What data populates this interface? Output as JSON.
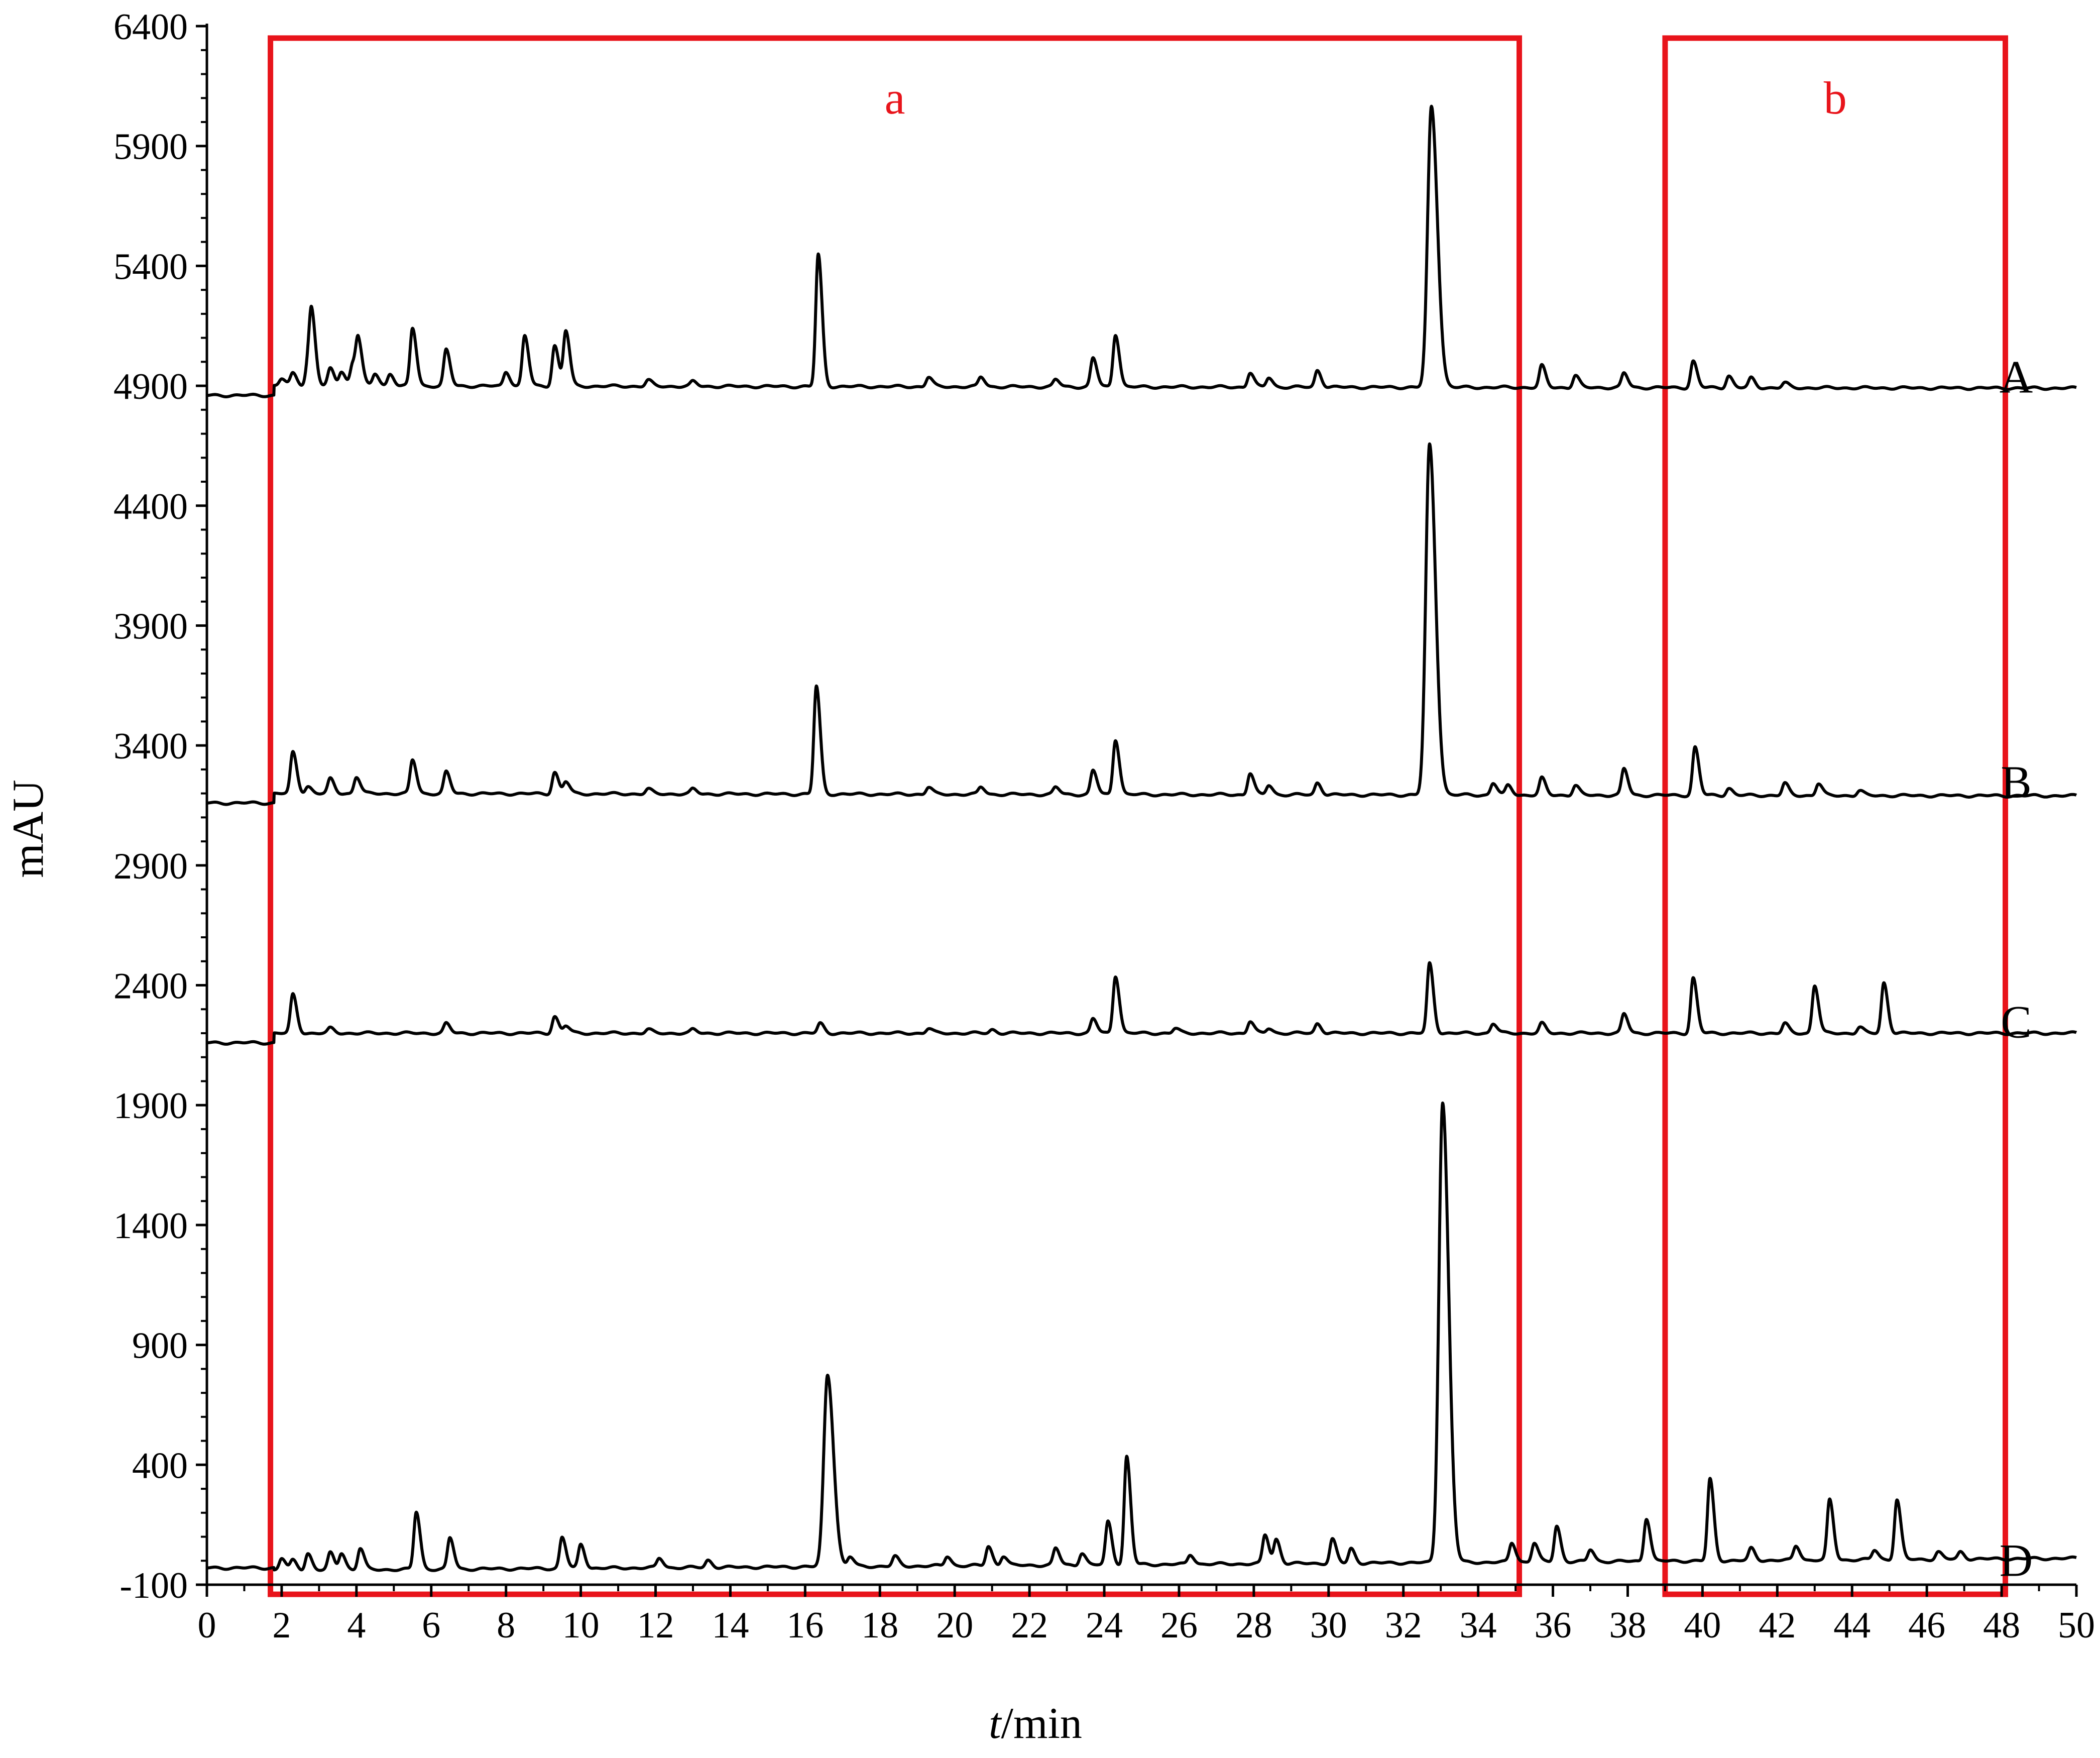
{
  "chart_data": {
    "type": "line",
    "title": "",
    "xlabel_italic": "t",
    "xlabel_rest": "/min",
    "ylabel": "mAU",
    "xlim": [
      0,
      50
    ],
    "ylim": [
      -100,
      6400
    ],
    "x_ticks": [
      0,
      2,
      4,
      6,
      8,
      10,
      12,
      14,
      16,
      18,
      20,
      22,
      24,
      26,
      28,
      30,
      32,
      34,
      36,
      38,
      40,
      42,
      44,
      46,
      48,
      50
    ],
    "y_ticks": [
      -100,
      400,
      900,
      1400,
      1900,
      2400,
      2900,
      3400,
      3900,
      4400,
      4900,
      5400,
      5900,
      6400
    ],
    "grid": false,
    "regions": [
      {
        "label": "a",
        "x_range": [
          1.7,
          35.1
        ],
        "y_range": [
          -140,
          6350
        ],
        "color": "#e8141b"
      },
      {
        "label": "b",
        "x_range": [
          39.0,
          48.1
        ],
        "y_range": [
          -140,
          6350
        ],
        "color": "#e8141b"
      }
    ],
    "series": [
      {
        "name": "A",
        "baseline": 4900,
        "end_value": 4890,
        "peaks": [
          [
            2.0,
            30
          ],
          [
            2.3,
            50
          ],
          [
            2.7,
            80
          ],
          [
            2.8,
            280
          ],
          [
            3.3,
            70
          ],
          [
            3.6,
            60
          ],
          [
            3.9,
            90
          ],
          [
            4.05,
            180
          ],
          [
            4.5,
            50
          ],
          [
            4.9,
            50
          ],
          [
            5.5,
            240
          ],
          [
            6.4,
            150
          ],
          [
            8.0,
            60
          ],
          [
            8.5,
            210
          ],
          [
            9.3,
            170
          ],
          [
            9.6,
            230
          ],
          [
            11.8,
            25
          ],
          [
            13.0,
            20
          ],
          [
            16.35,
            550
          ],
          [
            19.3,
            40
          ],
          [
            20.7,
            40
          ],
          [
            22.7,
            30
          ],
          [
            23.7,
            120
          ],
          [
            24.3,
            220
          ],
          [
            27.9,
            60
          ],
          [
            28.4,
            40
          ],
          [
            29.7,
            70
          ],
          [
            32.75,
            1170
          ],
          [
            35.7,
            90
          ],
          [
            36.6,
            50
          ],
          [
            37.9,
            60
          ],
          [
            39.75,
            110
          ],
          [
            40.7,
            50
          ],
          [
            41.3,
            40
          ],
          [
            42.2,
            20
          ]
        ]
      },
      {
        "name": "B",
        "baseline": 3200,
        "end_value": 3190,
        "peaks": [
          [
            2.3,
            170
          ],
          [
            2.7,
            30
          ],
          [
            3.3,
            60
          ],
          [
            4.0,
            70
          ],
          [
            5.5,
            140
          ],
          [
            6.4,
            90
          ],
          [
            9.3,
            90
          ],
          [
            9.6,
            50
          ],
          [
            11.8,
            20
          ],
          [
            13.0,
            20
          ],
          [
            16.3,
            450
          ],
          [
            19.3,
            30
          ],
          [
            20.7,
            30
          ],
          [
            22.7,
            30
          ],
          [
            23.7,
            100
          ],
          [
            24.3,
            230
          ],
          [
            27.9,
            90
          ],
          [
            28.4,
            40
          ],
          [
            29.7,
            50
          ],
          [
            32.7,
            1460
          ],
          [
            34.4,
            50
          ],
          [
            34.8,
            40
          ],
          [
            35.7,
            70
          ],
          [
            36.6,
            40
          ],
          [
            37.9,
            110
          ],
          [
            39.8,
            200
          ],
          [
            40.7,
            30
          ],
          [
            42.2,
            50
          ],
          [
            43.1,
            50
          ],
          [
            44.2,
            20
          ]
        ]
      },
      {
        "name": "C",
        "baseline": 2200,
        "end_value": 2200,
        "peaks": [
          [
            2.3,
            160
          ],
          [
            3.3,
            20
          ],
          [
            6.4,
            40
          ],
          [
            9.3,
            70
          ],
          [
            9.6,
            30
          ],
          [
            11.8,
            15
          ],
          [
            13.0,
            15
          ],
          [
            16.4,
            40
          ],
          [
            19.3,
            20
          ],
          [
            21.0,
            15
          ],
          [
            23.7,
            60
          ],
          [
            24.3,
            240
          ],
          [
            25.9,
            20
          ],
          [
            27.9,
            50
          ],
          [
            28.4,
            20
          ],
          [
            29.7,
            40
          ],
          [
            32.7,
            290
          ],
          [
            34.4,
            40
          ],
          [
            35.7,
            40
          ],
          [
            37.9,
            80
          ],
          [
            39.75,
            230
          ],
          [
            42.2,
            40
          ],
          [
            43.0,
            200
          ],
          [
            44.2,
            25
          ],
          [
            44.85,
            210
          ]
        ]
      },
      {
        "name": "D",
        "baseline": -40,
        "end_value": 10,
        "peaks": [
          [
            2.0,
            50
          ],
          [
            2.3,
            40
          ],
          [
            2.7,
            70
          ],
          [
            3.3,
            70
          ],
          [
            3.6,
            70
          ],
          [
            4.1,
            90
          ],
          [
            5.6,
            240
          ],
          [
            6.5,
            130
          ],
          [
            9.5,
            130
          ],
          [
            10.0,
            100
          ],
          [
            12.1,
            40
          ],
          [
            13.4,
            30
          ],
          [
            16.6,
            800
          ],
          [
            17.2,
            40
          ],
          [
            18.4,
            40
          ],
          [
            19.8,
            40
          ],
          [
            20.9,
            80
          ],
          [
            21.3,
            40
          ],
          [
            22.7,
            70
          ],
          [
            23.4,
            50
          ],
          [
            24.1,
            180
          ],
          [
            24.6,
            450
          ],
          [
            26.3,
            40
          ],
          [
            28.3,
            120
          ],
          [
            28.6,
            100
          ],
          [
            30.1,
            100
          ],
          [
            30.6,
            60
          ],
          [
            33.05,
            1920
          ],
          [
            34.9,
            80
          ],
          [
            35.5,
            80
          ],
          [
            36.1,
            150
          ],
          [
            37.0,
            50
          ],
          [
            38.5,
            180
          ],
          [
            40.2,
            340
          ],
          [
            41.3,
            50
          ],
          [
            42.5,
            60
          ],
          [
            43.4,
            250
          ],
          [
            44.6,
            40
          ],
          [
            45.2,
            250
          ],
          [
            46.3,
            30
          ],
          [
            46.9,
            30
          ]
        ]
      }
    ]
  }
}
